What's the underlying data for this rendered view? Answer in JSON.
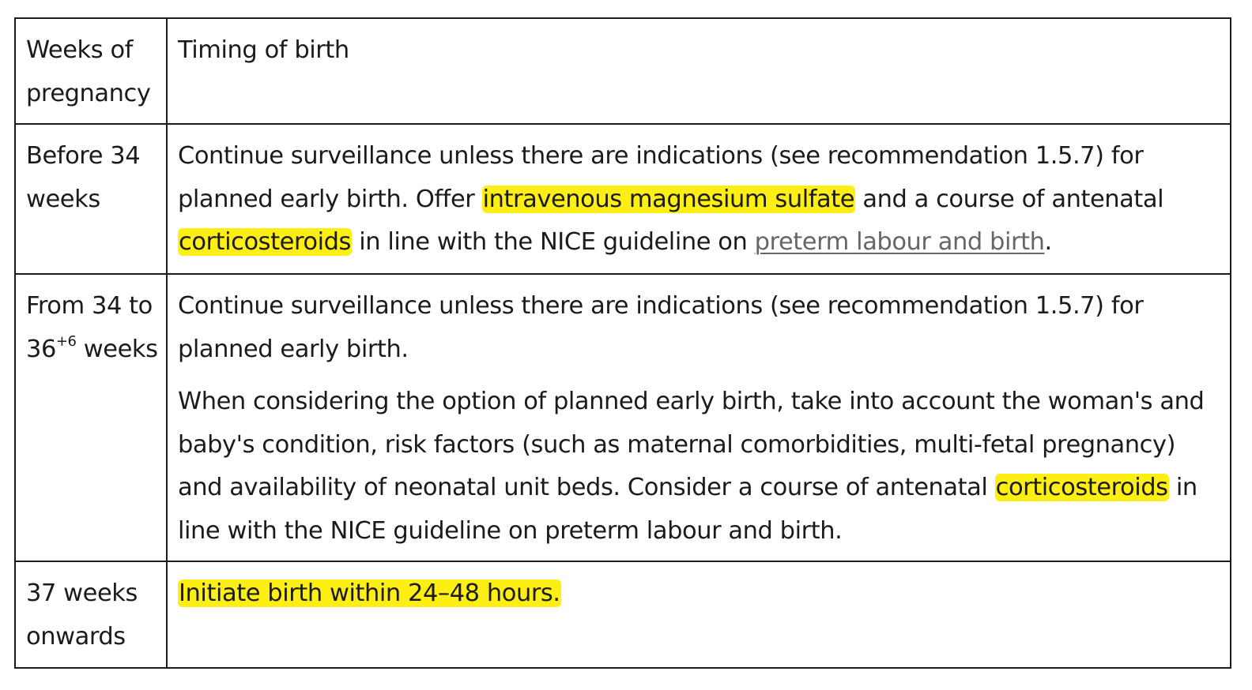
{
  "table": {
    "headers": {
      "weeks": "Weeks of pregnancy",
      "timing": "Timing of birth"
    },
    "rows": [
      {
        "weeks": "Before 34 weeks",
        "timing": {
          "part1": "Continue surveillance unless there are indications (see recommendation 1.5.7) for planned early birth. Offer ",
          "highlight1": "intravenous magnesium sulfate",
          "part2": " and a course of antenatal ",
          "highlight2": "corticosteroids",
          "part3": " in line with the NICE guideline on ",
          "link": "preterm labour and birth",
          "part4": "."
        }
      },
      {
        "weeks_pre": "From 34 to 36",
        "weeks_sup": "+6",
        "weeks_post": " weeks",
        "timing": {
          "para1": "Continue surveillance unless there are indications (see recommendation 1.5.7) for planned early birth.",
          "para2_part1": "When considering the option of planned early birth, take into account the woman's and baby's condition, risk factors (such as maternal comorbidities, multi-fetal pregnancy) and availability of neonatal unit beds. Consider a course of antenatal ",
          "para2_highlight": "corticosteroids",
          "para2_part2": " in line with the NICE guideline on preterm labour and birth."
        }
      },
      {
        "weeks": "37 weeks onwards",
        "timing": {
          "highlight": "Initiate birth within 24–48 hours."
        }
      }
    ]
  },
  "colors": {
    "highlight": "#fdee13",
    "border": "#1b1b1b",
    "text": "#1b1b1b",
    "link": "#666666"
  }
}
